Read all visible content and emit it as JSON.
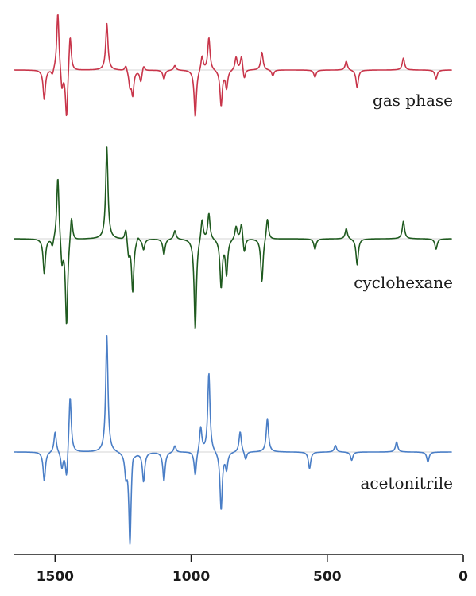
{
  "chart_data": {
    "type": "line",
    "x_axis": {
      "range": [
        1650,
        0
      ],
      "reversed": true,
      "ticks": [
        1500,
        1000,
        500,
        0
      ],
      "tick_labels": [
        "1500",
        "1000",
        "500",
        "0"
      ],
      "xlabel": ""
    },
    "grid": false,
    "series": [
      {
        "name": "gas phase",
        "color": "#c8354a",
        "peaks": [
          {
            "x": 1540,
            "y": -0.5
          },
          {
            "x": 1510,
            "y": -0.1
          },
          {
            "x": 1490,
            "y": 1.0
          },
          {
            "x": 1475,
            "y": -0.35
          },
          {
            "x": 1458,
            "y": -0.85
          },
          {
            "x": 1445,
            "y": 0.65
          },
          {
            "x": 1310,
            "y": 0.78
          },
          {
            "x": 1240,
            "y": 0.1
          },
          {
            "x": 1225,
            "y": -0.25
          },
          {
            "x": 1215,
            "y": -0.4
          },
          {
            "x": 1185,
            "y": -0.2
          },
          {
            "x": 1175,
            "y": 0.1
          },
          {
            "x": 1100,
            "y": -0.15
          },
          {
            "x": 1060,
            "y": 0.08
          },
          {
            "x": 985,
            "y": -0.8
          },
          {
            "x": 960,
            "y": 0.25
          },
          {
            "x": 935,
            "y": 0.55
          },
          {
            "x": 890,
            "y": -0.6
          },
          {
            "x": 870,
            "y": -0.3
          },
          {
            "x": 835,
            "y": 0.22
          },
          {
            "x": 815,
            "y": 0.25
          },
          {
            "x": 805,
            "y": -0.18
          },
          {
            "x": 740,
            "y": 0.3
          },
          {
            "x": 700,
            "y": -0.1
          },
          {
            "x": 545,
            "y": -0.12
          },
          {
            "x": 430,
            "y": 0.15
          },
          {
            "x": 390,
            "y": -0.3
          },
          {
            "x": 220,
            "y": 0.2
          },
          {
            "x": 100,
            "y": -0.15
          }
        ]
      },
      {
        "name": "cyclohexane",
        "color": "#1f5a1f",
        "peaks": [
          {
            "x": 1540,
            "y": -0.4
          },
          {
            "x": 1510,
            "y": -0.1
          },
          {
            "x": 1490,
            "y": 0.75
          },
          {
            "x": 1475,
            "y": -0.3
          },
          {
            "x": 1458,
            "y": -1.0
          },
          {
            "x": 1440,
            "y": 0.3
          },
          {
            "x": 1310,
            "y": 1.05
          },
          {
            "x": 1240,
            "y": 0.15
          },
          {
            "x": 1230,
            "y": -0.18
          },
          {
            "x": 1215,
            "y": -0.6
          },
          {
            "x": 1195,
            "y": 0.05
          },
          {
            "x": 1175,
            "y": -0.12
          },
          {
            "x": 1100,
            "y": -0.18
          },
          {
            "x": 1060,
            "y": 0.1
          },
          {
            "x": 985,
            "y": -1.05
          },
          {
            "x": 960,
            "y": 0.25
          },
          {
            "x": 935,
            "y": 0.3
          },
          {
            "x": 890,
            "y": -0.55
          },
          {
            "x": 870,
            "y": -0.4
          },
          {
            "x": 835,
            "y": 0.15
          },
          {
            "x": 815,
            "y": 0.2
          },
          {
            "x": 805,
            "y": -0.18
          },
          {
            "x": 740,
            "y": -0.5
          },
          {
            "x": 720,
            "y": 0.25
          },
          {
            "x": 545,
            "y": -0.12
          },
          {
            "x": 430,
            "y": 0.12
          },
          {
            "x": 390,
            "y": -0.3
          },
          {
            "x": 220,
            "y": 0.2
          },
          {
            "x": 100,
            "y": -0.12
          }
        ]
      },
      {
        "name": "acetonitrile",
        "color": "#4a7ec6",
        "peaks": [
          {
            "x": 1540,
            "y": -0.35
          },
          {
            "x": 1500,
            "y": 0.25
          },
          {
            "x": 1475,
            "y": -0.2
          },
          {
            "x": 1458,
            "y": -0.35
          },
          {
            "x": 1445,
            "y": 0.7
          },
          {
            "x": 1310,
            "y": 1.4
          },
          {
            "x": 1240,
            "y": -0.25
          },
          {
            "x": 1225,
            "y": -1.1
          },
          {
            "x": 1215,
            "y": 0.1
          },
          {
            "x": 1175,
            "y": -0.35
          },
          {
            "x": 1100,
            "y": -0.35
          },
          {
            "x": 1060,
            "y": 0.08
          },
          {
            "x": 985,
            "y": -0.3
          },
          {
            "x": 965,
            "y": 0.3
          },
          {
            "x": 935,
            "y": 0.95
          },
          {
            "x": 890,
            "y": -0.7
          },
          {
            "x": 870,
            "y": -0.2
          },
          {
            "x": 820,
            "y": 0.25
          },
          {
            "x": 800,
            "y": -0.1
          },
          {
            "x": 720,
            "y": 0.4
          },
          {
            "x": 565,
            "y": -0.2
          },
          {
            "x": 470,
            "y": 0.08
          },
          {
            "x": 410,
            "y": -0.1
          },
          {
            "x": 245,
            "y": 0.12
          },
          {
            "x": 130,
            "y": -0.12
          }
        ]
      }
    ]
  }
}
